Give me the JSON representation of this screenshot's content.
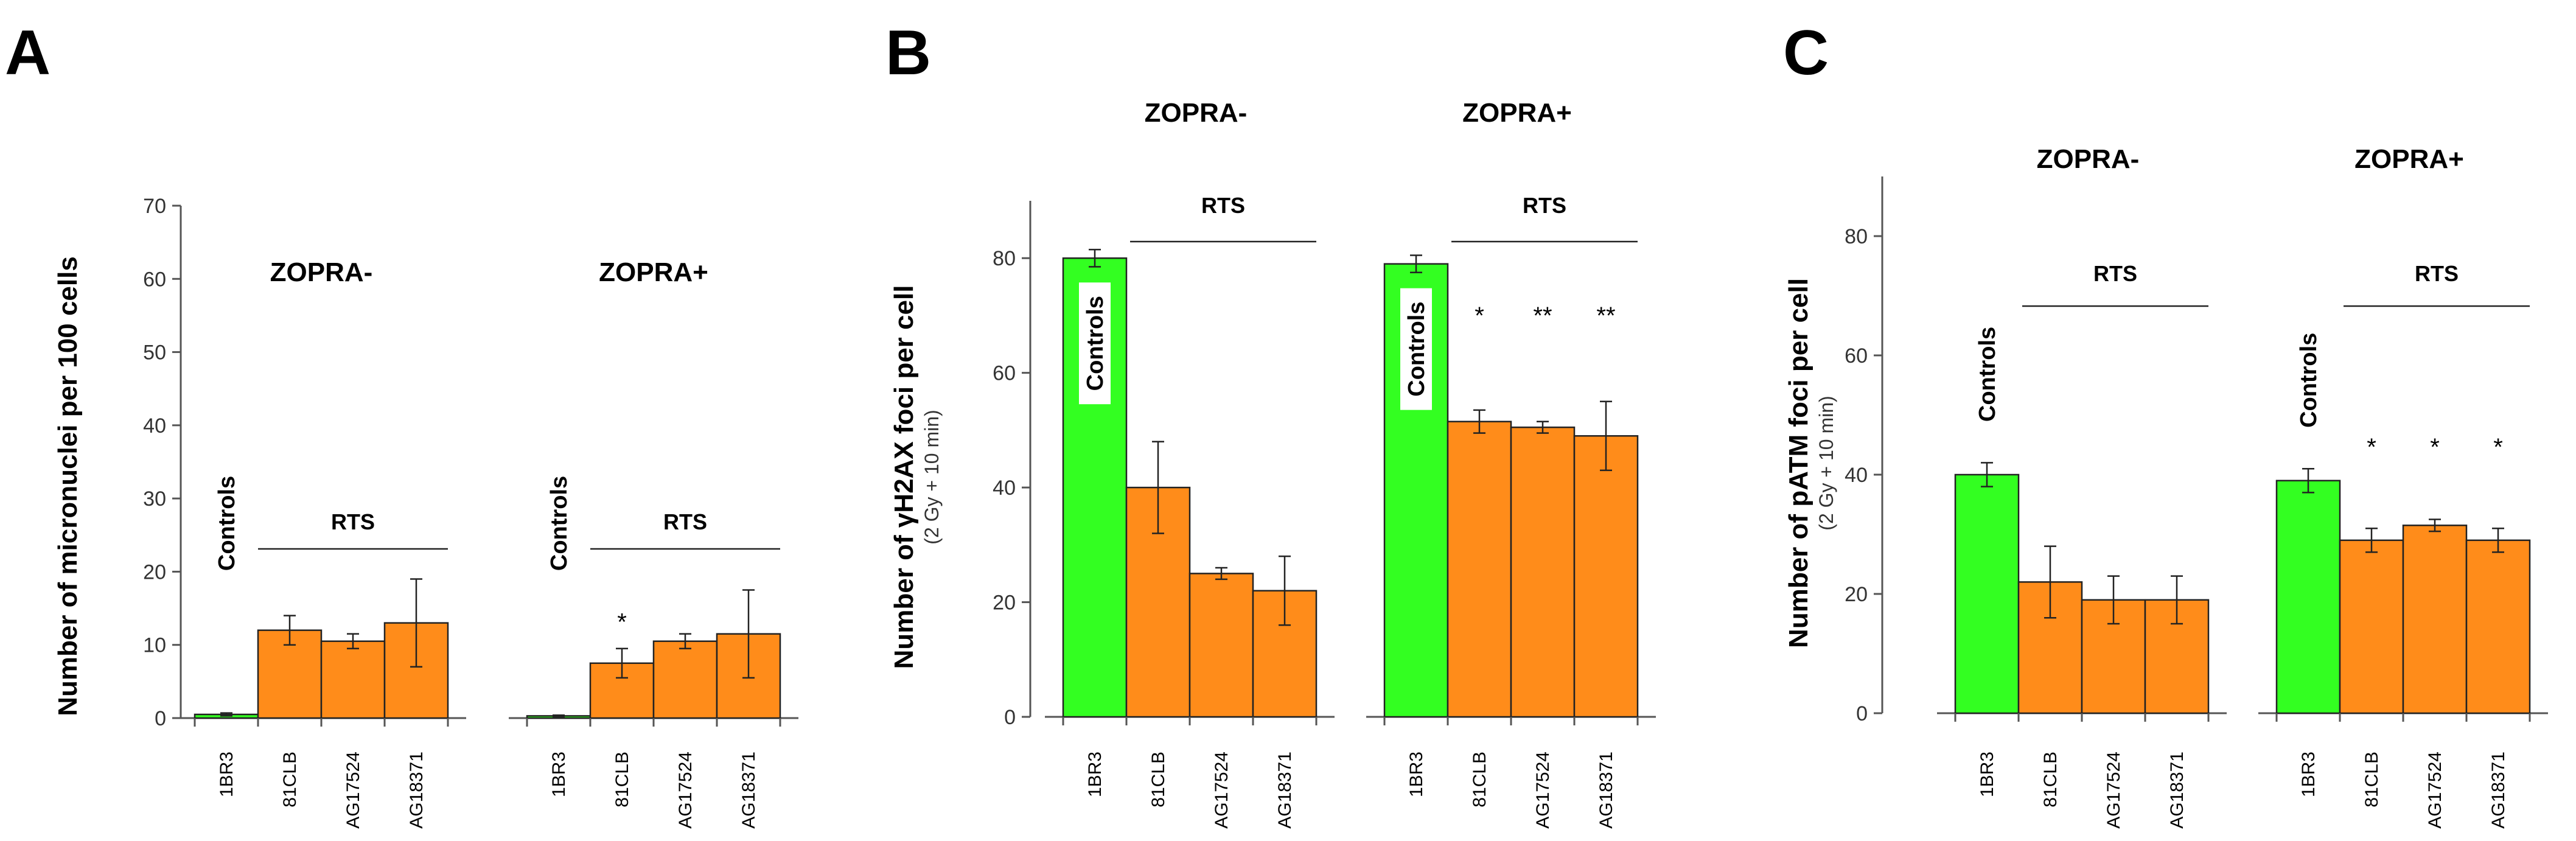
{
  "colors": {
    "control": "#33ff21",
    "rts": "#ff8c1a",
    "bar_stroke": "#222222",
    "axis": "#555555",
    "text": "#000000"
  },
  "chart_data": [
    {
      "panel": "A",
      "type": "bar",
      "ylabel": "Number of micronuclei per 100 cells",
      "ylabel_sub": "",
      "ylim": [
        0,
        70
      ],
      "yticks": [
        0,
        10,
        20,
        30,
        40,
        50,
        60,
        70
      ],
      "groups": [
        {
          "label": "ZOPRA-",
          "rts_label": "RTS",
          "control_label": "Controls",
          "control_label_style": "plain",
          "bars": [
            {
              "category": "1BR3",
              "value": 0.5,
              "err": 0.2,
              "color": "control",
              "sig": ""
            },
            {
              "category": "81CLB",
              "value": 12,
              "err": 2,
              "color": "rts",
              "sig": ""
            },
            {
              "category": "AG17524",
              "value": 10.5,
              "err": 1,
              "color": "rts",
              "sig": ""
            },
            {
              "category": "AG18371",
              "value": 13,
              "err": 6,
              "color": "rts",
              "sig": ""
            }
          ]
        },
        {
          "label": "ZOPRA+",
          "rts_label": "RTS",
          "control_label": "Controls",
          "control_label_style": "plain",
          "bars": [
            {
              "category": "1BR3",
              "value": 0.3,
              "err": 0.1,
              "color": "control",
              "sig": ""
            },
            {
              "category": "81CLB",
              "value": 7.5,
              "err": 2,
              "color": "rts",
              "sig": "*"
            },
            {
              "category": "AG17524",
              "value": 10.5,
              "err": 1,
              "color": "rts",
              "sig": ""
            },
            {
              "category": "AG18371",
              "value": 11.5,
              "err": 6,
              "color": "rts",
              "sig": ""
            }
          ]
        }
      ]
    },
    {
      "panel": "B",
      "type": "bar",
      "ylabel": "Number of γH2AX foci per cell",
      "ylabel_sub": "(2 Gy + 10 min)",
      "ylim": [
        0,
        90
      ],
      "yticks": [
        0,
        20,
        40,
        60,
        80
      ],
      "groups": [
        {
          "label": "ZOPRA-",
          "rts_label": "RTS",
          "control_label": "Controls",
          "control_label_style": "boxed",
          "bars": [
            {
              "category": "1BR3",
              "value": 80,
              "err": 1.5,
              "color": "control",
              "sig": ""
            },
            {
              "category": "81CLB",
              "value": 40,
              "err": 8,
              "color": "rts",
              "sig": ""
            },
            {
              "category": "AG17524",
              "value": 25,
              "err": 1,
              "color": "rts",
              "sig": ""
            },
            {
              "category": "AG18371",
              "value": 22,
              "err": 6,
              "color": "rts",
              "sig": ""
            }
          ]
        },
        {
          "label": "ZOPRA+",
          "rts_label": "RTS",
          "control_label": "Controls",
          "control_label_style": "boxed",
          "bars": [
            {
              "category": "1BR3",
              "value": 79,
              "err": 1.5,
              "color": "control",
              "sig": ""
            },
            {
              "category": "81CLB",
              "value": 51.5,
              "err": 2,
              "color": "rts",
              "sig": "*"
            },
            {
              "category": "AG17524",
              "value": 50.5,
              "err": 1,
              "color": "rts",
              "sig": "**"
            },
            {
              "category": "AG18371",
              "value": 49,
              "err": 6,
              "color": "rts",
              "sig": "**"
            }
          ]
        }
      ]
    },
    {
      "panel": "C",
      "type": "bar",
      "ylabel": "Number of pATM foci per cell",
      "ylabel_sub": "(2 Gy + 10 min)",
      "ylim": [
        0,
        90
      ],
      "yticks": [
        0,
        20,
        40,
        60,
        80
      ],
      "groups": [
        {
          "label": "ZOPRA-",
          "rts_label": "RTS",
          "control_label": "Controls",
          "control_label_style": "plain",
          "bars": [
            {
              "category": "1BR3",
              "value": 40,
              "err": 2,
              "color": "control",
              "sig": ""
            },
            {
              "category": "81CLB",
              "value": 22,
              "err": 6,
              "color": "rts",
              "sig": ""
            },
            {
              "category": "AG17524",
              "value": 19,
              "err": 4,
              "color": "rts",
              "sig": ""
            },
            {
              "category": "AG18371",
              "value": 19,
              "err": 4,
              "color": "rts",
              "sig": ""
            }
          ]
        },
        {
          "label": "ZOPRA+",
          "rts_label": "RTS",
          "control_label": "Controls",
          "control_label_style": "plain",
          "bars": [
            {
              "category": "1BR3",
              "value": 39,
              "err": 2,
              "color": "control",
              "sig": ""
            },
            {
              "category": "81CLB",
              "value": 29,
              "err": 2,
              "color": "rts",
              "sig": "*"
            },
            {
              "category": "AG17524",
              "value": 31.5,
              "err": 1,
              "color": "rts",
              "sig": "*"
            },
            {
              "category": "AG18371",
              "value": 29,
              "err": 2,
              "color": "rts",
              "sig": "*"
            }
          ]
        }
      ]
    }
  ]
}
